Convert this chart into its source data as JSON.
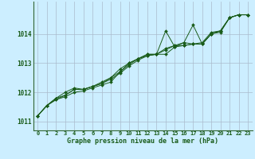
{
  "xlabel": "Graphe pression niveau de la mer (hPa)",
  "bg_color": "#cceeff",
  "grid_color": "#aabbcc",
  "line_color": "#1a5c1a",
  "text_color": "#1a5c1a",
  "axis_color": "#336633",
  "ylim": [
    1010.7,
    1015.1
  ],
  "xlim": [
    -0.5,
    23.5
  ],
  "yticks": [
    1011,
    1012,
    1013,
    1014
  ],
  "xticks": [
    0,
    1,
    2,
    3,
    4,
    5,
    6,
    7,
    8,
    9,
    10,
    11,
    12,
    13,
    14,
    15,
    16,
    17,
    18,
    19,
    20,
    21,
    22,
    23
  ],
  "series": [
    [
      1011.2,
      1011.55,
      1011.75,
      1011.85,
      1012.0,
      1012.05,
      1012.15,
      1012.25,
      1012.35,
      1012.7,
      1013.0,
      1013.15,
      1013.3,
      1013.3,
      1014.1,
      1013.55,
      1013.6,
      1013.65,
      1013.65,
      1014.0,
      1014.05,
      1014.55,
      1014.65,
      1014.65
    ],
    [
      1011.2,
      1011.55,
      1011.75,
      1011.9,
      1012.1,
      1012.1,
      1012.2,
      1012.3,
      1012.45,
      1012.65,
      1012.9,
      1013.1,
      1013.25,
      1013.3,
      1013.3,
      1013.55,
      1013.7,
      1014.3,
      1013.65,
      1014.0,
      1014.1,
      1014.55,
      1014.65,
      1014.65
    ],
    [
      1011.2,
      1011.55,
      1011.8,
      1011.9,
      1012.1,
      1012.1,
      1012.2,
      1012.3,
      1012.5,
      1012.7,
      1012.95,
      1013.15,
      1013.25,
      1013.3,
      1013.45,
      1013.6,
      1013.7,
      1013.65,
      1013.65,
      1014.0,
      1014.1,
      1014.55,
      1014.65,
      1014.65
    ],
    [
      1011.2,
      1011.55,
      1011.8,
      1012.0,
      1012.15,
      1012.1,
      1012.2,
      1012.35,
      1012.5,
      1012.8,
      1013.0,
      1013.15,
      1013.3,
      1013.3,
      1013.5,
      1013.6,
      1013.6,
      1013.65,
      1013.7,
      1014.05,
      1014.1,
      1014.55,
      1014.65,
      1014.65
    ]
  ]
}
